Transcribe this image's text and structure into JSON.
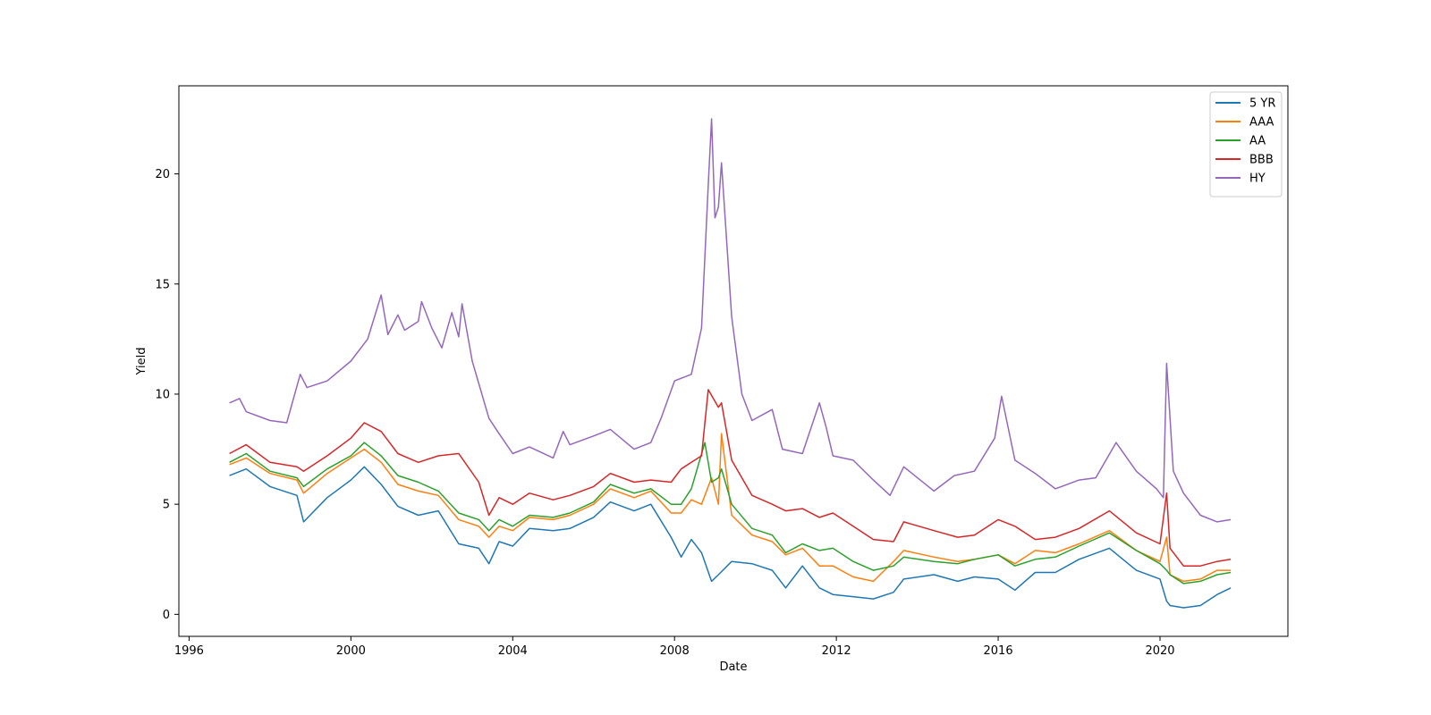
{
  "chart_data": {
    "type": "line",
    "xlabel": "Date",
    "ylabel": "Yield",
    "x_axis": {
      "type": "date",
      "range": [
        "1995-10-01",
        "2023-03-01"
      ],
      "ticks": [
        "1996",
        "2000",
        "2004",
        "2008",
        "2012",
        "2016",
        "2020"
      ]
    },
    "y_axis": {
      "range": [
        -1.0,
        24.0
      ],
      "ticks": [
        "0",
        "5",
        "10",
        "15",
        "20"
      ]
    },
    "grid": false,
    "legend_position": "top-right",
    "series": [
      {
        "name": "5 YR",
        "color": "#1f77b4",
        "x": [
          "1997-01-01",
          "1997-06-01",
          "1998-01-01",
          "1998-09-01",
          "1998-11-01",
          "1999-06-01",
          "2000-01-01",
          "2000-05-01",
          "2000-10-01",
          "2001-03-01",
          "2001-09-01",
          "2002-03-01",
          "2002-09-01",
          "2003-03-01",
          "2003-06-01",
          "2003-09-01",
          "2004-01-01",
          "2004-06-01",
          "2005-01-01",
          "2005-06-01",
          "2006-01-01",
          "2006-06-01",
          "2007-01-01",
          "2007-06-01",
          "2007-12-01",
          "2008-03-01",
          "2008-06-01",
          "2008-09-01",
          "2008-12-01",
          "2009-02-01",
          "2009-06-01",
          "2009-12-01",
          "2010-06-01",
          "2010-10-01",
          "2011-03-01",
          "2011-08-01",
          "2011-12-01",
          "2012-06-01",
          "2012-12-01",
          "2013-06-01",
          "2013-09-01",
          "2014-06-01",
          "2015-01-01",
          "2015-06-01",
          "2016-01-01",
          "2016-06-01",
          "2016-12-01",
          "2017-06-01",
          "2018-01-01",
          "2018-10-01",
          "2019-06-01",
          "2020-01-01",
          "2020-03-01",
          "2020-04-01",
          "2020-08-01",
          "2021-01-01",
          "2021-06-01",
          "2021-10-01"
        ],
        "values": [
          6.3,
          6.6,
          5.8,
          5.4,
          4.2,
          5.3,
          6.1,
          6.7,
          5.9,
          4.9,
          4.5,
          4.7,
          3.2,
          3.0,
          2.3,
          3.3,
          3.1,
          3.9,
          3.8,
          3.9,
          4.4,
          5.1,
          4.7,
          5.0,
          3.5,
          2.6,
          3.4,
          2.8,
          1.5,
          1.8,
          2.4,
          2.3,
          2.0,
          1.2,
          2.2,
          1.2,
          0.9,
          0.8,
          0.7,
          1.0,
          1.6,
          1.8,
          1.5,
          1.7,
          1.6,
          1.1,
          1.9,
          1.9,
          2.5,
          3.0,
          2.0,
          1.6,
          0.6,
          0.4,
          0.3,
          0.4,
          0.9,
          1.2
        ]
      },
      {
        "name": "AAA",
        "color": "#ff7f0e",
        "x": [
          "1997-01-01",
          "1997-06-01",
          "1998-01-01",
          "1998-09-01",
          "1998-11-01",
          "1999-06-01",
          "2000-01-01",
          "2000-05-01",
          "2000-10-01",
          "2001-03-01",
          "2001-09-01",
          "2002-03-01",
          "2002-09-01",
          "2003-03-01",
          "2003-06-01",
          "2003-09-01",
          "2004-01-01",
          "2004-06-01",
          "2005-01-01",
          "2005-06-01",
          "2006-01-01",
          "2006-06-01",
          "2007-01-01",
          "2007-06-01",
          "2007-12-01",
          "2008-03-01",
          "2008-06-01",
          "2008-09-01",
          "2008-12-01",
          "2009-02-01",
          "2009-03-01",
          "2009-06-01",
          "2009-12-01",
          "2010-06-01",
          "2010-10-01",
          "2011-03-01",
          "2011-08-01",
          "2011-12-01",
          "2012-06-01",
          "2012-12-01",
          "2013-06-01",
          "2013-09-01",
          "2014-06-01",
          "2015-01-01",
          "2015-06-01",
          "2016-01-01",
          "2016-06-01",
          "2016-12-01",
          "2017-06-01",
          "2018-01-01",
          "2018-10-01",
          "2019-06-01",
          "2020-01-01",
          "2020-03-01",
          "2020-04-01",
          "2020-08-01",
          "2021-01-01",
          "2021-06-01",
          "2021-10-01"
        ],
        "values": [
          6.8,
          7.1,
          6.4,
          6.1,
          5.5,
          6.4,
          7.1,
          7.5,
          6.9,
          5.9,
          5.6,
          5.4,
          4.3,
          4.0,
          3.5,
          4.0,
          3.8,
          4.4,
          4.3,
          4.5,
          5.0,
          5.7,
          5.3,
          5.6,
          4.6,
          4.6,
          5.2,
          5.0,
          6.2,
          5.0,
          8.2,
          4.5,
          3.6,
          3.3,
          2.7,
          3.0,
          2.2,
          2.2,
          1.7,
          1.5,
          2.4,
          2.9,
          2.6,
          2.4,
          2.5,
          2.7,
          2.3,
          2.9,
          2.8,
          3.2,
          3.8,
          2.9,
          2.4,
          3.5,
          1.8,
          1.5,
          1.6,
          2.0,
          2.0
        ]
      },
      {
        "name": "AA",
        "color": "#2ca02c",
        "x": [
          "1997-01-01",
          "1997-06-01",
          "1998-01-01",
          "1998-09-01",
          "1998-11-01",
          "1999-06-01",
          "2000-01-01",
          "2000-05-01",
          "2000-10-01",
          "2001-03-01",
          "2001-09-01",
          "2002-03-01",
          "2002-09-01",
          "2003-03-01",
          "2003-06-01",
          "2003-09-01",
          "2004-01-01",
          "2004-06-01",
          "2005-01-01",
          "2005-06-01",
          "2006-01-01",
          "2006-06-01",
          "2007-01-01",
          "2007-06-01",
          "2007-12-01",
          "2008-03-01",
          "2008-06-01",
          "2008-10-01",
          "2008-12-01",
          "2009-02-01",
          "2009-03-01",
          "2009-06-01",
          "2009-12-01",
          "2010-06-01",
          "2010-10-01",
          "2011-03-01",
          "2011-08-01",
          "2011-12-01",
          "2012-06-01",
          "2012-12-01",
          "2013-06-01",
          "2013-09-01",
          "2014-06-01",
          "2015-01-01",
          "2015-06-01",
          "2016-01-01",
          "2016-06-01",
          "2016-12-01",
          "2017-06-01",
          "2018-01-01",
          "2018-10-01",
          "2019-06-01",
          "2020-01-01",
          "2020-03-01",
          "2020-04-01",
          "2020-08-01",
          "2021-01-01",
          "2021-06-01",
          "2021-10-01"
        ],
        "values": [
          6.9,
          7.3,
          6.5,
          6.2,
          5.8,
          6.6,
          7.2,
          7.8,
          7.2,
          6.3,
          6.0,
          5.6,
          4.6,
          4.3,
          3.8,
          4.3,
          4.0,
          4.5,
          4.4,
          4.6,
          5.1,
          5.9,
          5.5,
          5.7,
          5.0,
          5.0,
          5.7,
          7.8,
          6.0,
          6.2,
          6.6,
          5.0,
          3.9,
          3.6,
          2.8,
          3.2,
          2.9,
          3.0,
          2.4,
          2.0,
          2.2,
          2.6,
          2.4,
          2.3,
          2.5,
          2.7,
          2.2,
          2.5,
          2.6,
          3.1,
          3.7,
          2.9,
          2.3,
          2.0,
          1.8,
          1.4,
          1.5,
          1.8,
          1.9
        ]
      },
      {
        "name": "BBB",
        "color": "#d62728",
        "x": [
          "1997-01-01",
          "1997-06-01",
          "1998-01-01",
          "1998-09-01",
          "1998-11-01",
          "1999-06-01",
          "2000-01-01",
          "2000-05-01",
          "2000-10-01",
          "2001-03-01",
          "2001-09-01",
          "2002-03-01",
          "2002-09-01",
          "2003-03-01",
          "2003-06-01",
          "2003-09-01",
          "2004-01-01",
          "2004-06-01",
          "2005-01-01",
          "2005-06-01",
          "2006-01-01",
          "2006-06-01",
          "2007-01-01",
          "2007-06-01",
          "2007-12-01",
          "2008-03-01",
          "2008-06-01",
          "2008-09-01",
          "2008-11-01",
          "2009-02-01",
          "2009-03-01",
          "2009-06-01",
          "2009-12-01",
          "2010-06-01",
          "2010-10-01",
          "2011-03-01",
          "2011-08-01",
          "2011-12-01",
          "2012-06-01",
          "2012-12-01",
          "2013-06-01",
          "2013-09-01",
          "2014-06-01",
          "2015-01-01",
          "2015-06-01",
          "2016-01-01",
          "2016-06-01",
          "2016-12-01",
          "2017-06-01",
          "2018-01-01",
          "2018-10-01",
          "2019-06-01",
          "2020-01-01",
          "2020-03-01",
          "2020-04-01",
          "2020-08-01",
          "2021-01-01",
          "2021-06-01",
          "2021-10-01"
        ],
        "values": [
          7.3,
          7.7,
          6.9,
          6.7,
          6.5,
          7.2,
          8.0,
          8.7,
          8.3,
          7.3,
          6.9,
          7.2,
          7.3,
          6.0,
          4.5,
          5.3,
          5.0,
          5.5,
          5.2,
          5.4,
          5.8,
          6.4,
          6.0,
          6.1,
          6.0,
          6.6,
          6.9,
          7.2,
          10.2,
          9.4,
          9.6,
          7.0,
          5.4,
          5.0,
          4.7,
          4.8,
          4.4,
          4.6,
          4.0,
          3.4,
          3.3,
          4.2,
          3.8,
          3.5,
          3.6,
          4.3,
          4.0,
          3.4,
          3.5,
          3.9,
          4.7,
          3.7,
          3.2,
          5.5,
          3.0,
          2.2,
          2.2,
          2.4,
          2.5
        ]
      },
      {
        "name": "HY",
        "color": "#9467bd",
        "x": [
          "1997-01-01",
          "1997-04-01",
          "1997-06-01",
          "1998-01-01",
          "1998-06-01",
          "1998-10-01",
          "1998-12-01",
          "1999-06-01",
          "2000-01-01",
          "2000-06-01",
          "2000-10-01",
          "2000-12-01",
          "2001-03-01",
          "2001-05-01",
          "2001-09-01",
          "2001-10-01",
          "2002-01-01",
          "2002-04-01",
          "2002-07-01",
          "2002-09-01",
          "2002-10-01",
          "2003-01-01",
          "2003-06-01",
          "2003-09-01",
          "2004-01-01",
          "2004-06-01",
          "2005-01-01",
          "2005-04-01",
          "2005-06-01",
          "2006-01-01",
          "2006-06-01",
          "2007-01-01",
          "2007-06-01",
          "2007-09-01",
          "2008-01-01",
          "2008-06-01",
          "2008-09-01",
          "2008-11-01",
          "2008-12-01",
          "2009-01-01",
          "2009-02-01",
          "2009-03-01",
          "2009-06-01",
          "2009-09-01",
          "2009-12-01",
          "2010-06-01",
          "2010-09-01",
          "2011-03-01",
          "2011-08-01",
          "2011-10-01",
          "2011-12-01",
          "2012-06-01",
          "2012-12-01",
          "2013-05-01",
          "2013-09-01",
          "2014-06-01",
          "2014-12-01",
          "2015-06-01",
          "2015-12-01",
          "2016-02-01",
          "2016-06-01",
          "2016-12-01",
          "2017-06-01",
          "2018-01-01",
          "2018-06-01",
          "2018-12-01",
          "2019-06-01",
          "2019-12-01",
          "2020-02-01",
          "2020-03-01",
          "2020-05-01",
          "2020-08-01",
          "2021-01-01",
          "2021-06-01",
          "2021-10-01"
        ],
        "values": [
          9.6,
          9.8,
          9.2,
          8.8,
          8.7,
          10.9,
          10.3,
          10.6,
          11.5,
          12.5,
          14.5,
          12.7,
          13.6,
          12.9,
          13.3,
          14.2,
          13.0,
          12.1,
          13.7,
          12.6,
          14.1,
          11.5,
          8.9,
          8.2,
          7.3,
          7.6,
          7.1,
          8.3,
          7.7,
          8.1,
          8.4,
          7.5,
          7.8,
          8.9,
          10.6,
          10.9,
          13.0,
          19.5,
          22.5,
          18.0,
          18.5,
          20.5,
          13.5,
          10.0,
          8.8,
          9.3,
          7.5,
          7.3,
          9.6,
          8.5,
          7.2,
          7.0,
          6.1,
          5.4,
          6.7,
          5.6,
          6.3,
          6.5,
          8.0,
          9.9,
          7.0,
          6.4,
          5.7,
          6.1,
          6.2,
          7.8,
          6.5,
          5.7,
          5.3,
          11.4,
          6.5,
          5.5,
          4.5,
          4.2,
          4.3
        ]
      }
    ]
  }
}
